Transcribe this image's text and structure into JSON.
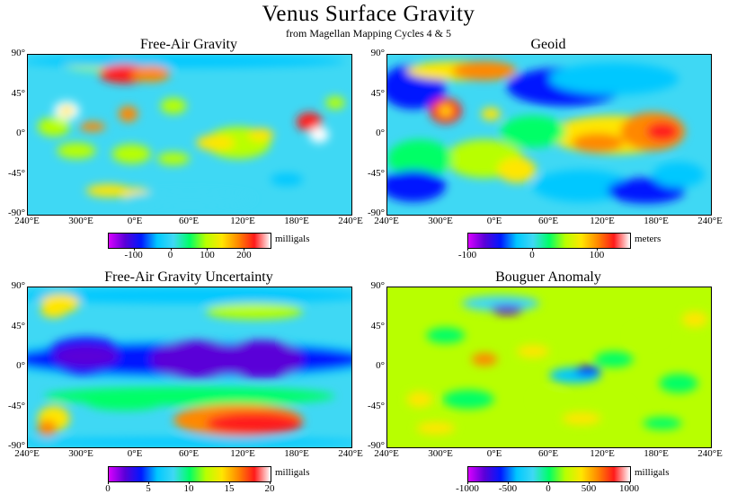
{
  "title": "Venus Surface Gravity",
  "subtitle": "from Magellan Mapping Cycles 4 & 5",
  "chart_data": [
    {
      "type": "heatmap",
      "title": "Free-Air Gravity",
      "colorbar": {
        "unit": "milligals",
        "range": [
          -170,
          270
        ],
        "ticks": [
          "-100",
          "0",
          "100",
          "200"
        ],
        "tick_values": [
          -100,
          0,
          100,
          200
        ]
      },
      "x_ticks": [
        "240°E",
        "300°E",
        "0°E",
        "60°E",
        "120°E",
        "180°E",
        "240°E"
      ],
      "y_ticks": [
        "90°",
        "45°",
        "0°",
        "-45°",
        "-90°"
      ],
      "colormap": [
        "#d900ff",
        "#5a00d8",
        "#0018ff",
        "#00c8ff",
        "#3fd8f4",
        "#00ff66",
        "#b8ff00",
        "#ffe600",
        "#ff8800",
        "#ff1a1a",
        "#ffffff"
      ]
    },
    {
      "type": "heatmap",
      "title": "Geoid",
      "colorbar": {
        "unit": "meters",
        "range": [
          -100,
          150
        ],
        "ticks": [
          "-100",
          "0",
          "100"
        ],
        "tick_values": [
          -100,
          0,
          100
        ]
      },
      "x_ticks": [
        "240°E",
        "300°E",
        "0°E",
        "60°E",
        "120°E",
        "180°E",
        "240°E"
      ],
      "y_ticks": [
        "90°",
        "45°",
        "0°",
        "-45°",
        "-90°"
      ],
      "colormap": [
        "#d900ff",
        "#5a00d8",
        "#0018ff",
        "#00c8ff",
        "#3fd8f4",
        "#00ff66",
        "#b8ff00",
        "#ffe600",
        "#ff8800",
        "#ff1a1a",
        "#ffffff"
      ]
    },
    {
      "type": "heatmap",
      "title": "Free-Air Gravity Uncertainty",
      "colorbar": {
        "unit": "milligals",
        "range": [
          0,
          20
        ],
        "ticks": [
          "0",
          "5",
          "10",
          "15",
          "20"
        ],
        "tick_values": [
          0,
          5,
          10,
          15,
          20
        ]
      },
      "x_ticks": [
        "240°E",
        "300°E",
        "0°E",
        "60°E",
        "120°E",
        "180°E",
        "240°E"
      ],
      "y_ticks": [
        "90°",
        "45°",
        "0°",
        "-45°",
        "-90°"
      ],
      "colormap": [
        "#d900ff",
        "#5a00d8",
        "#0018ff",
        "#00c8ff",
        "#3fd8f4",
        "#00ff66",
        "#b8ff00",
        "#ffe600",
        "#ff8800",
        "#ff1a1a",
        "#ffffff"
      ]
    },
    {
      "type": "heatmap",
      "title": "Bouguer Anomaly",
      "colorbar": {
        "unit": "milligals",
        "range": [
          -1000,
          1000
        ],
        "ticks": [
          "-1000",
          "-500",
          "0",
          "500",
          "1000"
        ],
        "tick_values": [
          -1000,
          -500,
          0,
          500,
          1000
        ]
      },
      "x_ticks": [
        "240°E",
        "300°E",
        "0°E",
        "60°E",
        "120°E",
        "180°E",
        "240°E"
      ],
      "y_ticks": [
        "90°",
        "45°",
        "0°",
        "-45°",
        "-90°"
      ],
      "colormap": [
        "#d900ff",
        "#5a00d8",
        "#0018ff",
        "#00c8ff",
        "#3fd8f4",
        "#00ff66",
        "#b8ff00",
        "#ffe600",
        "#ff8800",
        "#ff1a1a",
        "#ffffff"
      ]
    }
  ]
}
